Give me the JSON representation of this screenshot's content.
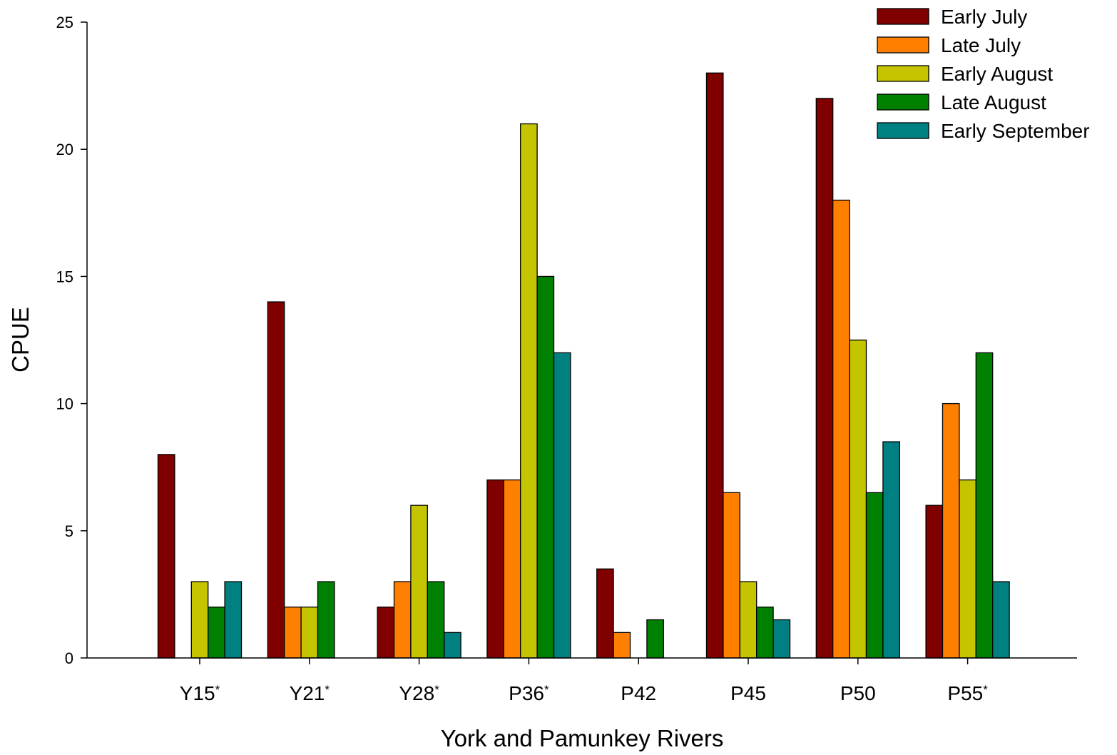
{
  "chart_data": {
    "type": "bar",
    "title": "",
    "xlabel": "York and Pamunkey Rivers",
    "ylabel": "CPUE",
    "ylim": [
      0,
      25
    ],
    "yticks": [
      0,
      5,
      10,
      15,
      20,
      25
    ],
    "grid": false,
    "legend_position": "top-right",
    "categories": [
      {
        "name": "Y15",
        "marker": "*"
      },
      {
        "name": "Y21",
        "marker": "*"
      },
      {
        "name": "Y28",
        "marker": "*"
      },
      {
        "name": "P36",
        "marker": "*"
      },
      {
        "name": "P42",
        "marker": ""
      },
      {
        "name": "P45",
        "marker": ""
      },
      {
        "name": "P50",
        "marker": ""
      },
      {
        "name": "P55",
        "marker": "*"
      }
    ],
    "series": [
      {
        "name": "Early July",
        "color": "#800000",
        "values": [
          8,
          14,
          2,
          7,
          3.5,
          23,
          22,
          6
        ]
      },
      {
        "name": "Late July",
        "color": "#ff8000",
        "values": [
          0,
          2,
          3,
          7,
          1,
          6.5,
          18,
          10
        ]
      },
      {
        "name": "Early August",
        "color": "#c4c400",
        "values": [
          3,
          2,
          6,
          21,
          0,
          3,
          12.5,
          7
        ]
      },
      {
        "name": "Late August",
        "color": "#008000",
        "values": [
          2,
          3,
          3,
          15,
          1.5,
          2,
          6.5,
          12
        ]
      },
      {
        "name": "Early September",
        "color": "#008080",
        "values": [
          3,
          0,
          1,
          12,
          0,
          1.5,
          8.5,
          3
        ]
      }
    ]
  }
}
